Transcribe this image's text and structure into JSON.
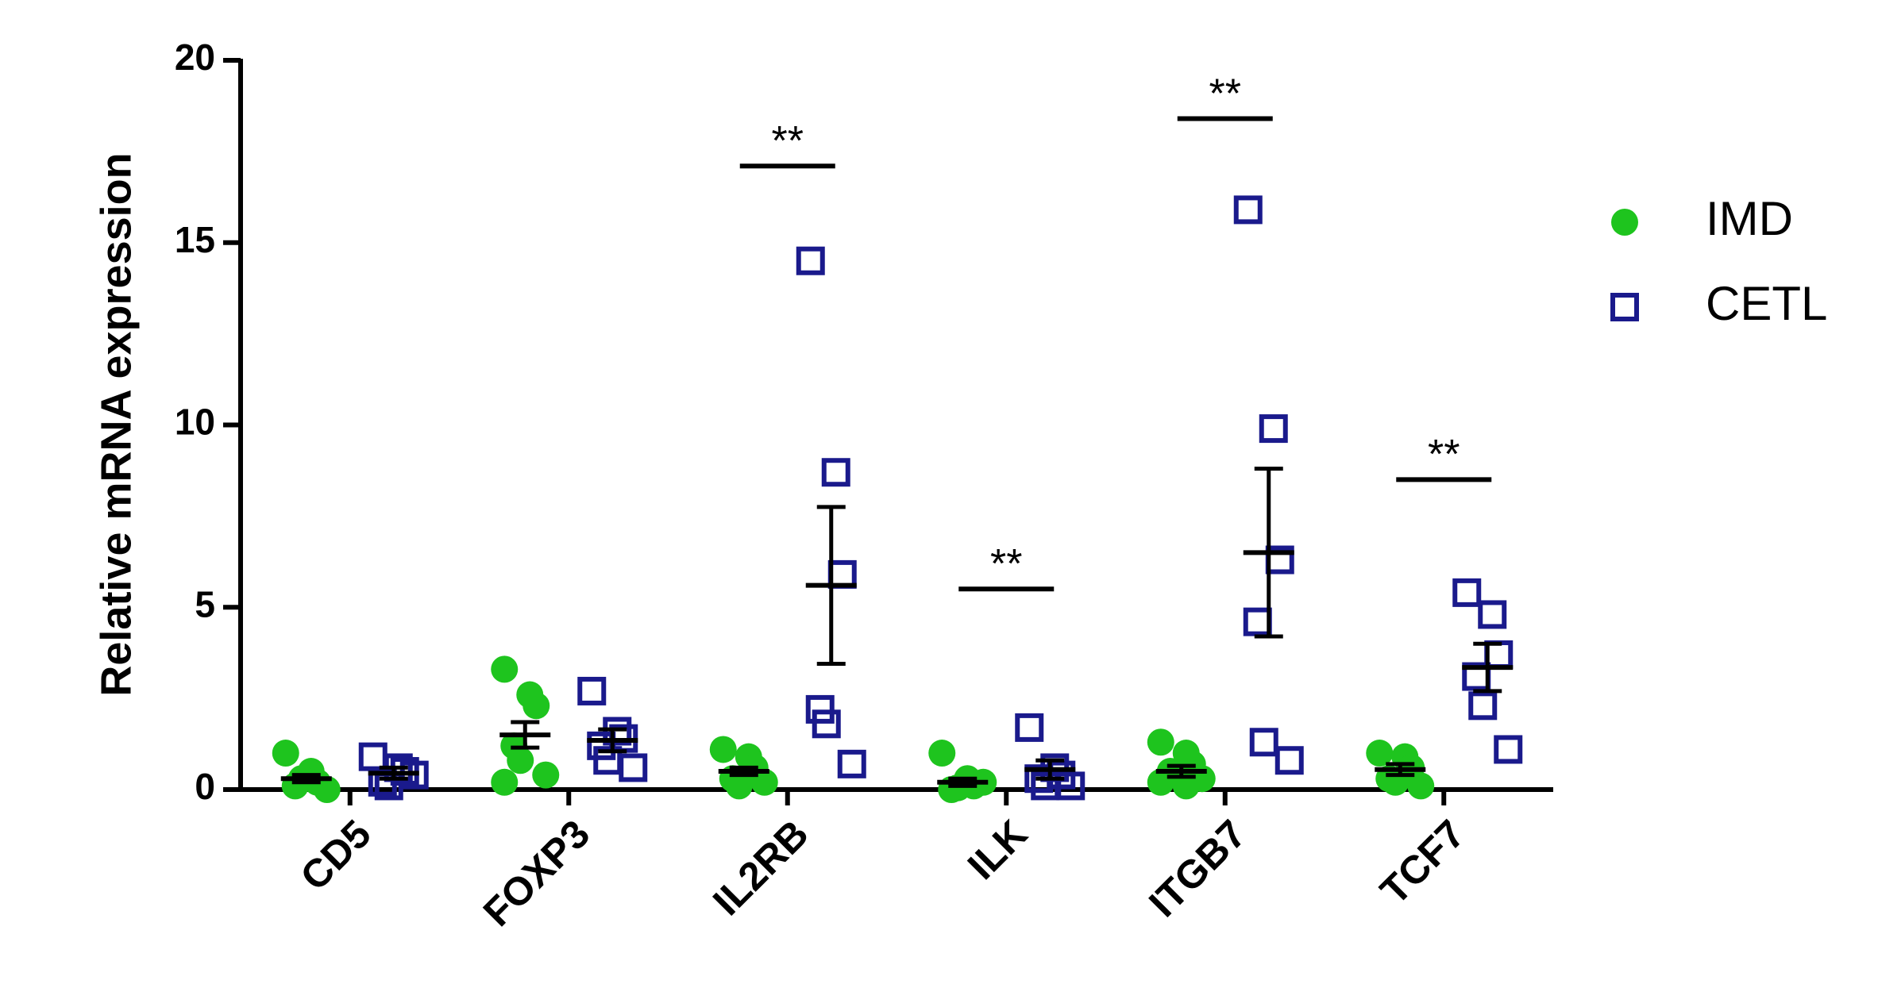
{
  "chart_data": {
    "type": "dot",
    "ylabel": "Relative mRNA expression",
    "categories": [
      "CD5",
      "FOXP3",
      "IL2RB",
      "ILK",
      "ITGB7",
      "TCF7"
    ],
    "ylim": [
      0,
      20
    ],
    "yticks": [
      0,
      5,
      10,
      15,
      20
    ],
    "legend": "right",
    "series": [
      {
        "name": "IMD",
        "color": "#1ec41e",
        "marker": "circle",
        "values": [
          [
            1.0,
            0.5,
            0.2,
            0.1,
            0.3,
            0.0
          ],
          [
            3.3,
            2.6,
            2.3,
            1.2,
            0.8,
            0.4,
            0.2
          ],
          [
            1.1,
            0.9,
            0.6,
            0.3,
            0.1,
            0.2
          ],
          [
            1.0,
            0.3,
            0.1,
            0.0,
            0.05,
            0.2
          ],
          [
            1.3,
            1.0,
            0.7,
            0.5,
            0.4,
            0.3,
            0.2,
            0.1
          ],
          [
            1.0,
            0.9,
            0.6,
            0.3,
            0.2,
            0.1
          ]
        ],
        "mean": [
          0.3,
          1.5,
          0.5,
          0.2,
          0.5,
          0.55
        ],
        "sem": [
          0.1,
          0.35,
          0.1,
          0.1,
          0.15,
          0.15
        ]
      },
      {
        "name": "CETL",
        "color": "#1a1a8c",
        "marker": "square",
        "values": [
          [
            0.9,
            0.6,
            0.5,
            0.2,
            0.1,
            0.4
          ],
          [
            2.7,
            1.6,
            1.4,
            1.2,
            0.8,
            0.6
          ],
          [
            14.5,
            8.7,
            5.9,
            2.2,
            1.8,
            0.7
          ],
          [
            1.7,
            0.6,
            0.4,
            0.3,
            0.1,
            0.1
          ],
          [
            15.9,
            9.9,
            6.3,
            4.6,
            1.3,
            0.8
          ],
          [
            5.4,
            4.8,
            3.7,
            3.1,
            2.3,
            1.1
          ]
        ],
        "mean": [
          0.45,
          1.35,
          5.6,
          0.55,
          6.5,
          3.35
        ],
        "sem": [
          0.15,
          0.3,
          2.15,
          0.25,
          2.3,
          0.65
        ]
      }
    ],
    "annotations": [
      {
        "text": "**",
        "category": 2,
        "y": 17.1
      },
      {
        "text": "**",
        "category": 3,
        "y": 5.5
      },
      {
        "text": "**",
        "category": 4,
        "y": 18.4
      },
      {
        "text": "**",
        "category": 5,
        "y": 8.5
      }
    ]
  }
}
